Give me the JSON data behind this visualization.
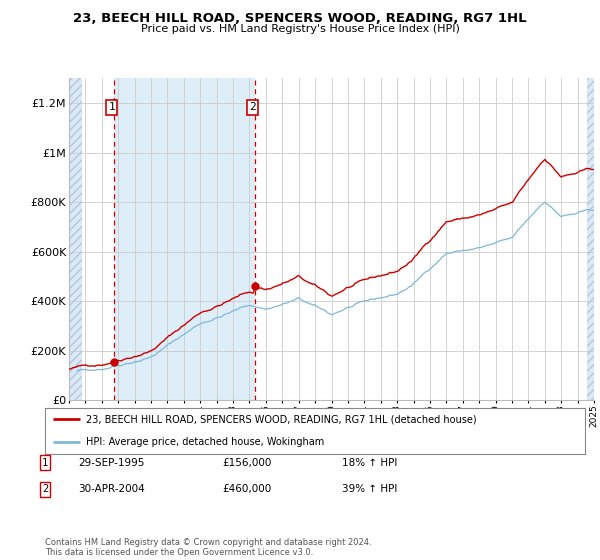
{
  "title_line1": "23, BEECH HILL ROAD, SPENCERS WOOD, READING, RG7 1HL",
  "title_line2": "Price paid vs. HM Land Registry's House Price Index (HPI)",
  "ylim": [
    0,
    1300000
  ],
  "yticks": [
    0,
    200000,
    400000,
    600000,
    800000,
    1000000,
    1200000
  ],
  "ytick_labels": [
    "£0",
    "£200K",
    "£400K",
    "£600K",
    "£800K",
    "£1M",
    "£1.2M"
  ],
  "sale1_date_x": 1995.75,
  "sale1_price": 156000,
  "sale2_date_x": 2004.33,
  "sale2_price": 460000,
  "hpi_color": "#7fb8d8",
  "price_color": "#cc0000",
  "background_color": "#ffffff",
  "grid_color": "#cccccc",
  "legend_label1": "23, BEECH HILL ROAD, SPENCERS WOOD, READING, RG7 1HL (detached house)",
  "legend_label2": "HPI: Average price, detached house, Wokingham",
  "note1_date": "29-SEP-1995",
  "note1_price": "£156,000",
  "note1_hpi": "18% ↑ HPI",
  "note2_date": "30-APR-2004",
  "note2_price": "£460,000",
  "note2_hpi": "39% ↑ HPI",
  "copyright": "Contains HM Land Registry data © Crown copyright and database right 2024.\nThis data is licensed under the Open Government Licence v3.0.",
  "xmin": 1993,
  "xmax": 2025
}
